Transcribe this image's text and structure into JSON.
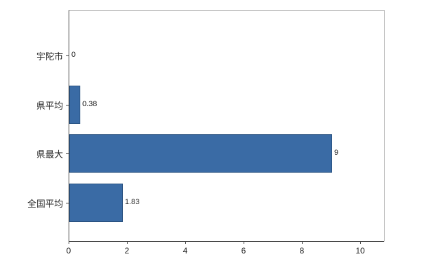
{
  "chart_data": {
    "type": "bar",
    "orientation": "horizontal",
    "title": "",
    "xlabel": "",
    "ylabel": "",
    "categories": [
      "宇陀市",
      "県平均",
      "県最大",
      "全国平均"
    ],
    "values": [
      0,
      0.38,
      9,
      1.83
    ],
    "value_labels": [
      "0",
      "0.38",
      "9",
      "1.83"
    ],
    "x_ticks": [
      "0",
      "2",
      "4",
      "6",
      "8",
      "10"
    ],
    "xlim": [
      0,
      10
    ],
    "legend": "none",
    "grid": false,
    "bar_color": "#3a6ba5",
    "bar_border_color": "#27507f",
    "axis_color": "#404040",
    "plot_border_color": "#bdbdbd",
    "text_color": "#1c1c1c",
    "background": "#ffffff"
  }
}
